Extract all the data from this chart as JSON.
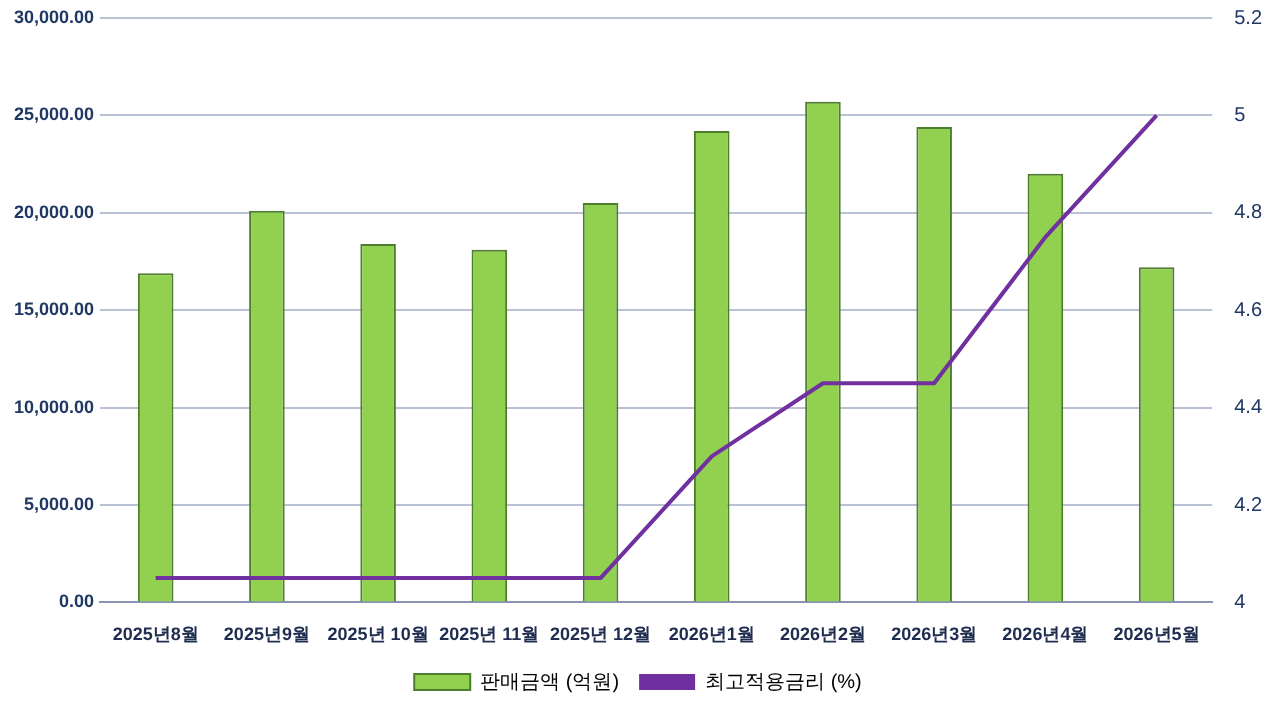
{
  "chart_data": {
    "type": "bar",
    "categories": [
      "2025년8월",
      "2025년9월",
      "2025년 10월",
      "2025년 11월",
      "2025년 12월",
      "2026년1월",
      "2026년2월",
      "2026년3월",
      "2026년4월",
      "2026년5월"
    ],
    "series": [
      {
        "name": "판매금액 (억원)",
        "color": "#92d050",
        "values": [
          16900,
          20100,
          18400,
          18100,
          20500,
          24200,
          25700,
          24400,
          22000,
          17200
        ]
      },
      {
        "name": "최고적용금리 (%)",
        "type": "line",
        "axis": "y2",
        "color": "#7030a0",
        "values": [
          4.05,
          4.05,
          4.05,
          4.05,
          4.05,
          4.3,
          4.45,
          4.45,
          4.75,
          5.0
        ]
      }
    ],
    "ylim": [
      0,
      30000
    ],
    "yticks": [
      {
        "value": 0,
        "label": "0.00"
      },
      {
        "value": 5000,
        "label": "5,000.00"
      },
      {
        "value": 10000,
        "label": "10,000.00"
      },
      {
        "value": 15000,
        "label": "15,000.00"
      },
      {
        "value": 20000,
        "label": "20,000.00"
      },
      {
        "value": 25000,
        "label": "25,000.00"
      },
      {
        "value": 30000,
        "label": "30,000.00"
      }
    ],
    "y2lim": [
      4,
      5.2
    ],
    "y2ticks": [
      4,
      4.2,
      4.4,
      4.6,
      4.8,
      5,
      5.2
    ],
    "grid": "y",
    "legend": "bottom",
    "marker": "none"
  }
}
